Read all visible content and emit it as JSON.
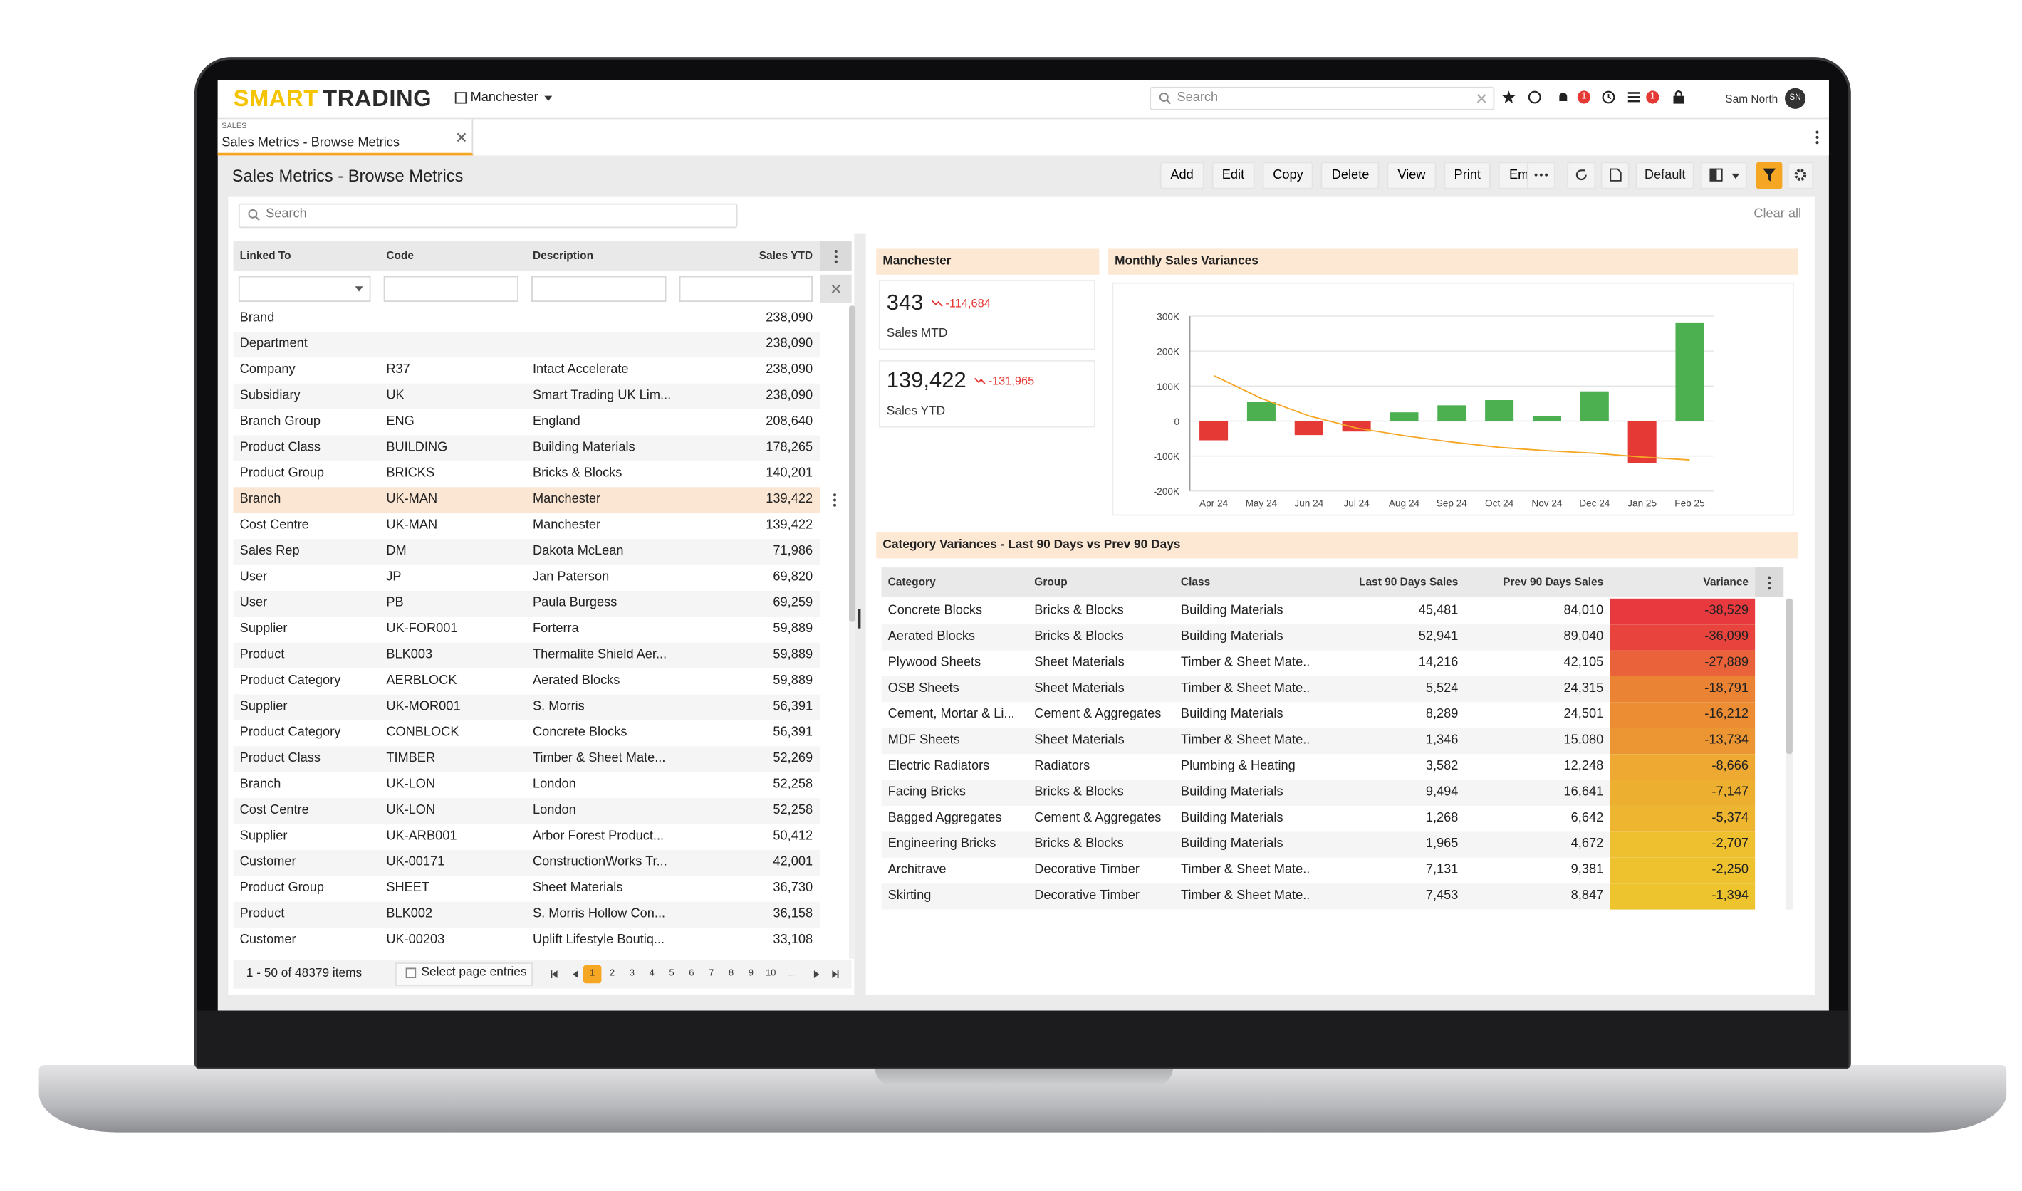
{
  "header": {
    "logo": {
      "primary": "SMART",
      "secondary": "TRADING"
    },
    "branch": "Manchester",
    "search_placeholder": "Search",
    "badges": [
      "1",
      "1"
    ],
    "user": "Sam North",
    "initials": "SN"
  },
  "tab": {
    "module": "SALES",
    "title": "Sales Metrics - Browse Metrics"
  },
  "page": {
    "title": "Sales Metrics - Browse Metrics",
    "toolbar": [
      "Add",
      "Edit",
      "Copy",
      "Delete",
      "View",
      "Print",
      "Email"
    ],
    "view": "Default",
    "search_placeholder": "Search",
    "clear": "Clear all"
  },
  "grid": {
    "columns": [
      "Linked To",
      "Code",
      "Description",
      "Sales YTD"
    ],
    "selected_row": 7,
    "rows": [
      [
        "Brand",
        null,
        null,
        "238,090"
      ],
      [
        "Department",
        null,
        null,
        "238,090"
      ],
      [
        "Company",
        "R37",
        "Intact Accelerate",
        "238,090"
      ],
      [
        "Subsidiary",
        "UK",
        "Smart Trading UK Lim...",
        "238,090"
      ],
      [
        "Branch Group",
        "ENG",
        "England",
        "208,640"
      ],
      [
        "Product Class",
        "BUILDING",
        "Building Materials",
        "178,265"
      ],
      [
        "Product Group",
        "BRICKS",
        "Bricks & Blocks",
        "140,201"
      ],
      [
        "Branch",
        "UK-MAN",
        "Manchester",
        "139,422"
      ],
      [
        "Cost Centre",
        "UK-MAN",
        "Manchester",
        "139,422"
      ],
      [
        "Sales Rep",
        "DM",
        "Dakota McLean",
        "71,986"
      ],
      [
        "User",
        "JP",
        "Jan Paterson",
        "69,820"
      ],
      [
        "User",
        "PB",
        "Paula Burgess",
        "69,259"
      ],
      [
        "Supplier",
        "UK-FOR001",
        "Forterra",
        "59,889"
      ],
      [
        "Product",
        "BLK003",
        "Thermalite Shield Aer...",
        "59,889"
      ],
      [
        "Product Category",
        "AERBLOCK",
        "Aerated Blocks",
        "59,889"
      ],
      [
        "Supplier",
        "UK-MOR001",
        "S. Morris",
        "56,391"
      ],
      [
        "Product Category",
        "CONBLOCK",
        "Concrete Blocks",
        "56,391"
      ],
      [
        "Product Class",
        "TIMBER",
        "Timber & Sheet Mate...",
        "52,269"
      ],
      [
        "Branch",
        "UK-LON",
        "London",
        "52,258"
      ],
      [
        "Cost Centre",
        "UK-LON",
        "London",
        "52,258"
      ],
      [
        "Supplier",
        "UK-ARB001",
        "Arbor Forest Product...",
        "50,412"
      ],
      [
        "Customer",
        "UK-00171",
        "ConstructionWorks Tr...",
        "42,001"
      ],
      [
        "Product Group",
        "SHEET",
        "Sheet Materials",
        "36,730"
      ],
      [
        "Product",
        "BLK002",
        "S. Morris Hollow Con...",
        "36,158"
      ],
      [
        "Customer",
        "UK-00203",
        "Uplift Lifestyle Boutiq...",
        "33,108"
      ]
    ],
    "footer": {
      "count": "1 - 50 of 48379 items",
      "select": "Select page entries",
      "pages": [
        "1",
        "2",
        "3",
        "4",
        "5",
        "6",
        "7",
        "8",
        "9",
        "10",
        "..."
      ],
      "current": 0
    }
  },
  "kpi": {
    "title": "Manchester",
    "cards": [
      {
        "value": "343",
        "delta": "-114,684",
        "label": "Sales MTD"
      },
      {
        "value": "139,422",
        "delta": "-131,965",
        "label": "Sales YTD"
      }
    ]
  },
  "chart_data": {
    "type": "bar",
    "title": "Monthly Sales Variances",
    "categories": [
      "Apr 24",
      "May 24",
      "Jun 24",
      "Jul 24",
      "Aug 24",
      "Sep 24",
      "Oct 24",
      "Nov 24",
      "Dec 24",
      "Jan 25",
      "Feb 25"
    ],
    "series": [
      {
        "type": "bar",
        "positive_color": "#4caf50",
        "negative_color": "#e53935",
        "values": [
          -55000,
          55000,
          -40000,
          -30000,
          25000,
          45000,
          60000,
          15000,
          85000,
          -120000,
          280000
        ]
      },
      {
        "type": "line",
        "color": "#f5a623",
        "values": [
          130000,
          65000,
          15000,
          -20000,
          -42000,
          -60000,
          -75000,
          -85000,
          -92000,
          -103000,
          -111000
        ]
      }
    ],
    "ylim": [
      -200000,
      300000
    ],
    "yticks": [
      {
        "value": 300000,
        "label": "300K"
      },
      {
        "value": 200000,
        "label": "200K"
      },
      {
        "value": 100000,
        "label": "100K"
      },
      0,
      {
        "value": -100000,
        "label": "-100K"
      },
      {
        "value": -200000,
        "label": "-200K"
      }
    ],
    "grid": true
  },
  "variances": {
    "title": "Category Variances - Last 90 Days vs Prev 90 Days",
    "columns": [
      "Category",
      "Group",
      "Class",
      "Last 90 Days Sales",
      "Prev 90 Days Sales",
      "Variance"
    ],
    "rows": [
      [
        "Concrete Blocks",
        "Bricks & Blocks",
        "Building Materials",
        "45,481",
        "84,010",
        "-38,529"
      ],
      [
        "Aerated Blocks",
        "Bricks & Blocks",
        "Building Materials",
        "52,941",
        "89,040",
        "-36,099"
      ],
      [
        "Plywood Sheets",
        "Sheet Materials",
        "Timber & Sheet Mate...",
        "14,216",
        "42,105",
        "-27,889"
      ],
      [
        "OSB Sheets",
        "Sheet Materials",
        "Timber & Sheet Mate...",
        "5,524",
        "24,315",
        "-18,791"
      ],
      [
        "Cement, Mortar & Li...",
        "Cement & Aggregates",
        "Building Materials",
        "8,289",
        "24,501",
        "-16,212"
      ],
      [
        "MDF Sheets",
        "Sheet Materials",
        "Timber & Sheet Mate...",
        "1,346",
        "15,080",
        "-13,734"
      ],
      [
        "Electric Radiators",
        "Radiators",
        "Plumbing & Heating",
        "3,582",
        "12,248",
        "-8,666"
      ],
      [
        "Facing Bricks",
        "Bricks & Blocks",
        "Building Materials",
        "9,494",
        "16,641",
        "-7,147"
      ],
      [
        "Bagged Aggregates",
        "Cement & Aggregates",
        "Building Materials",
        "1,268",
        "6,642",
        "-5,374"
      ],
      [
        "Engineering Bricks",
        "Bricks & Blocks",
        "Building Materials",
        "1,965",
        "4,672",
        "-2,707"
      ],
      [
        "Architrave",
        "Decorative Timber",
        "Timber & Sheet Mate...",
        "7,131",
        "9,381",
        "-2,250"
      ],
      [
        "Skirting",
        "Decorative Timber",
        "Timber & Sheet Mate...",
        "7,453",
        "8,847",
        "-1,394"
      ]
    ]
  }
}
